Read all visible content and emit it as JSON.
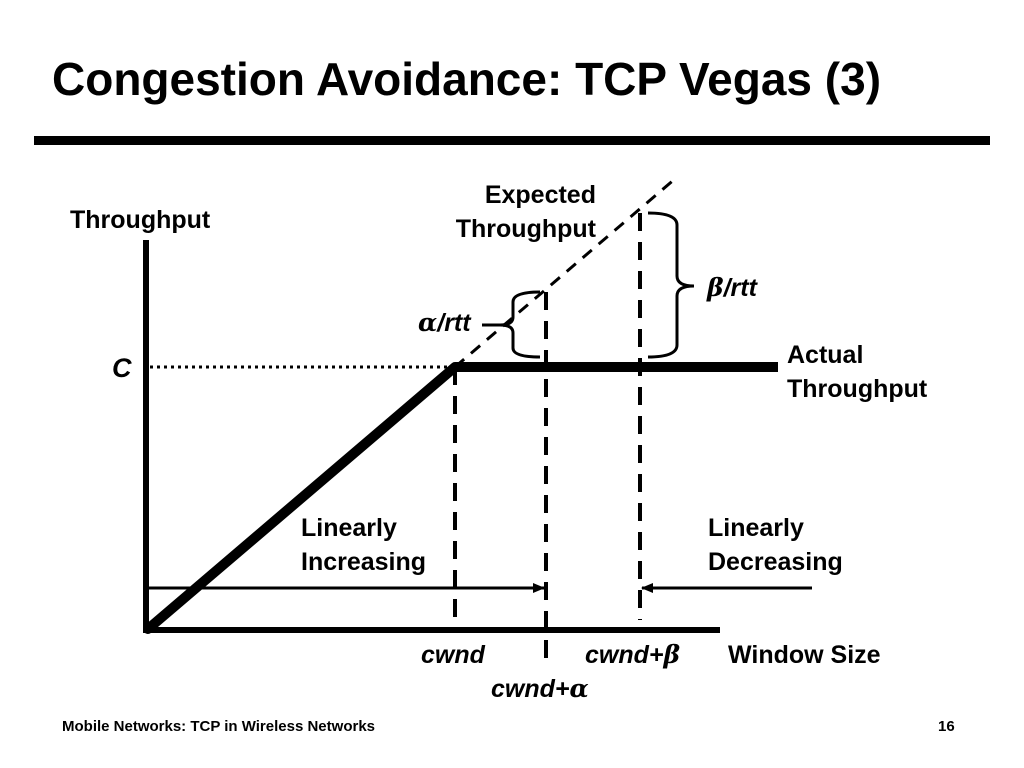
{
  "slide": {
    "title": "Congestion Avoidance: TCP Vegas (3)",
    "footer_left": "Mobile Networks:  TCP in Wireless Networks",
    "page_number": "16"
  },
  "diagram": {
    "y_axis_label": "Throughput",
    "x_axis_label": "Window Size",
    "capacity_label": "C",
    "expected_label": [
      "Expected",
      "Throughput"
    ],
    "actual_label": [
      "Actual",
      "Throughput"
    ],
    "alpha_label": {
      "symbol": "α",
      "text": "/rtt"
    },
    "beta_label": {
      "symbol": "β",
      "text": "/rtt"
    },
    "linearly_increasing": [
      "Linearly",
      "Increasing"
    ],
    "linearly_decreasing": [
      "Linearly",
      "Decreasing"
    ],
    "cwnd_label": "cwnd",
    "cwnd_alpha_label": {
      "text": "cwnd+",
      "symbol": "α"
    },
    "cwnd_beta_label": {
      "text": "cwnd+",
      "symbol": "β"
    }
  }
}
